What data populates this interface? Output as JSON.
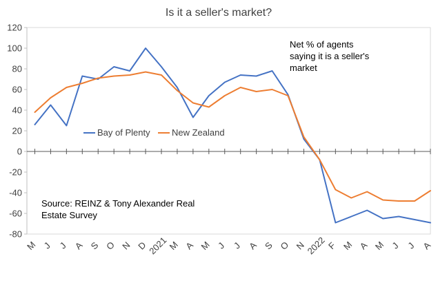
{
  "chart_data": {
    "type": "line",
    "title": "Is it a seller's market?",
    "xlabel": "",
    "ylabel": "",
    "ylim": [
      -80,
      120
    ],
    "yticks": [
      120,
      100,
      80,
      60,
      40,
      20,
      0,
      -20,
      -40,
      -60,
      -80
    ],
    "grid": false,
    "legend_position": "middle-left",
    "categories": [
      "M",
      "J",
      "J",
      "A",
      "S",
      "O",
      "N",
      "D",
      "2021",
      "M",
      "A",
      "M",
      "J",
      "J",
      "A",
      "S",
      "O",
      "N",
      "2022",
      "F",
      "M",
      "A",
      "M",
      "J",
      "J",
      "A"
    ],
    "series": [
      {
        "name": "Bay of Plenty",
        "color": "#4472C4",
        "values": [
          26,
          45,
          25,
          73,
          70,
          82,
          78,
          100,
          82,
          62,
          33,
          54,
          67,
          74,
          73,
          78,
          55,
          12,
          -8,
          -69,
          -63,
          -57,
          -65,
          -63,
          -66,
          -69
        ]
      },
      {
        "name": "New Zealand",
        "color": "#ED7D31",
        "values": [
          38,
          52,
          62,
          66,
          71,
          73,
          74,
          77,
          74,
          59,
          47,
          43,
          54,
          62,
          58,
          60,
          54,
          14,
          -8,
          -37,
          -45,
          -39,
          -47,
          -48,
          -48,
          -38
        ]
      }
    ],
    "annotations": {
      "net_line1": "Net % of agents",
      "net_line2": "saying it is a seller's",
      "net_line3": "market",
      "source_line1": "Source: REINZ & Tony Alexander  Real",
      "source_line2": "Estate Survey"
    }
  }
}
